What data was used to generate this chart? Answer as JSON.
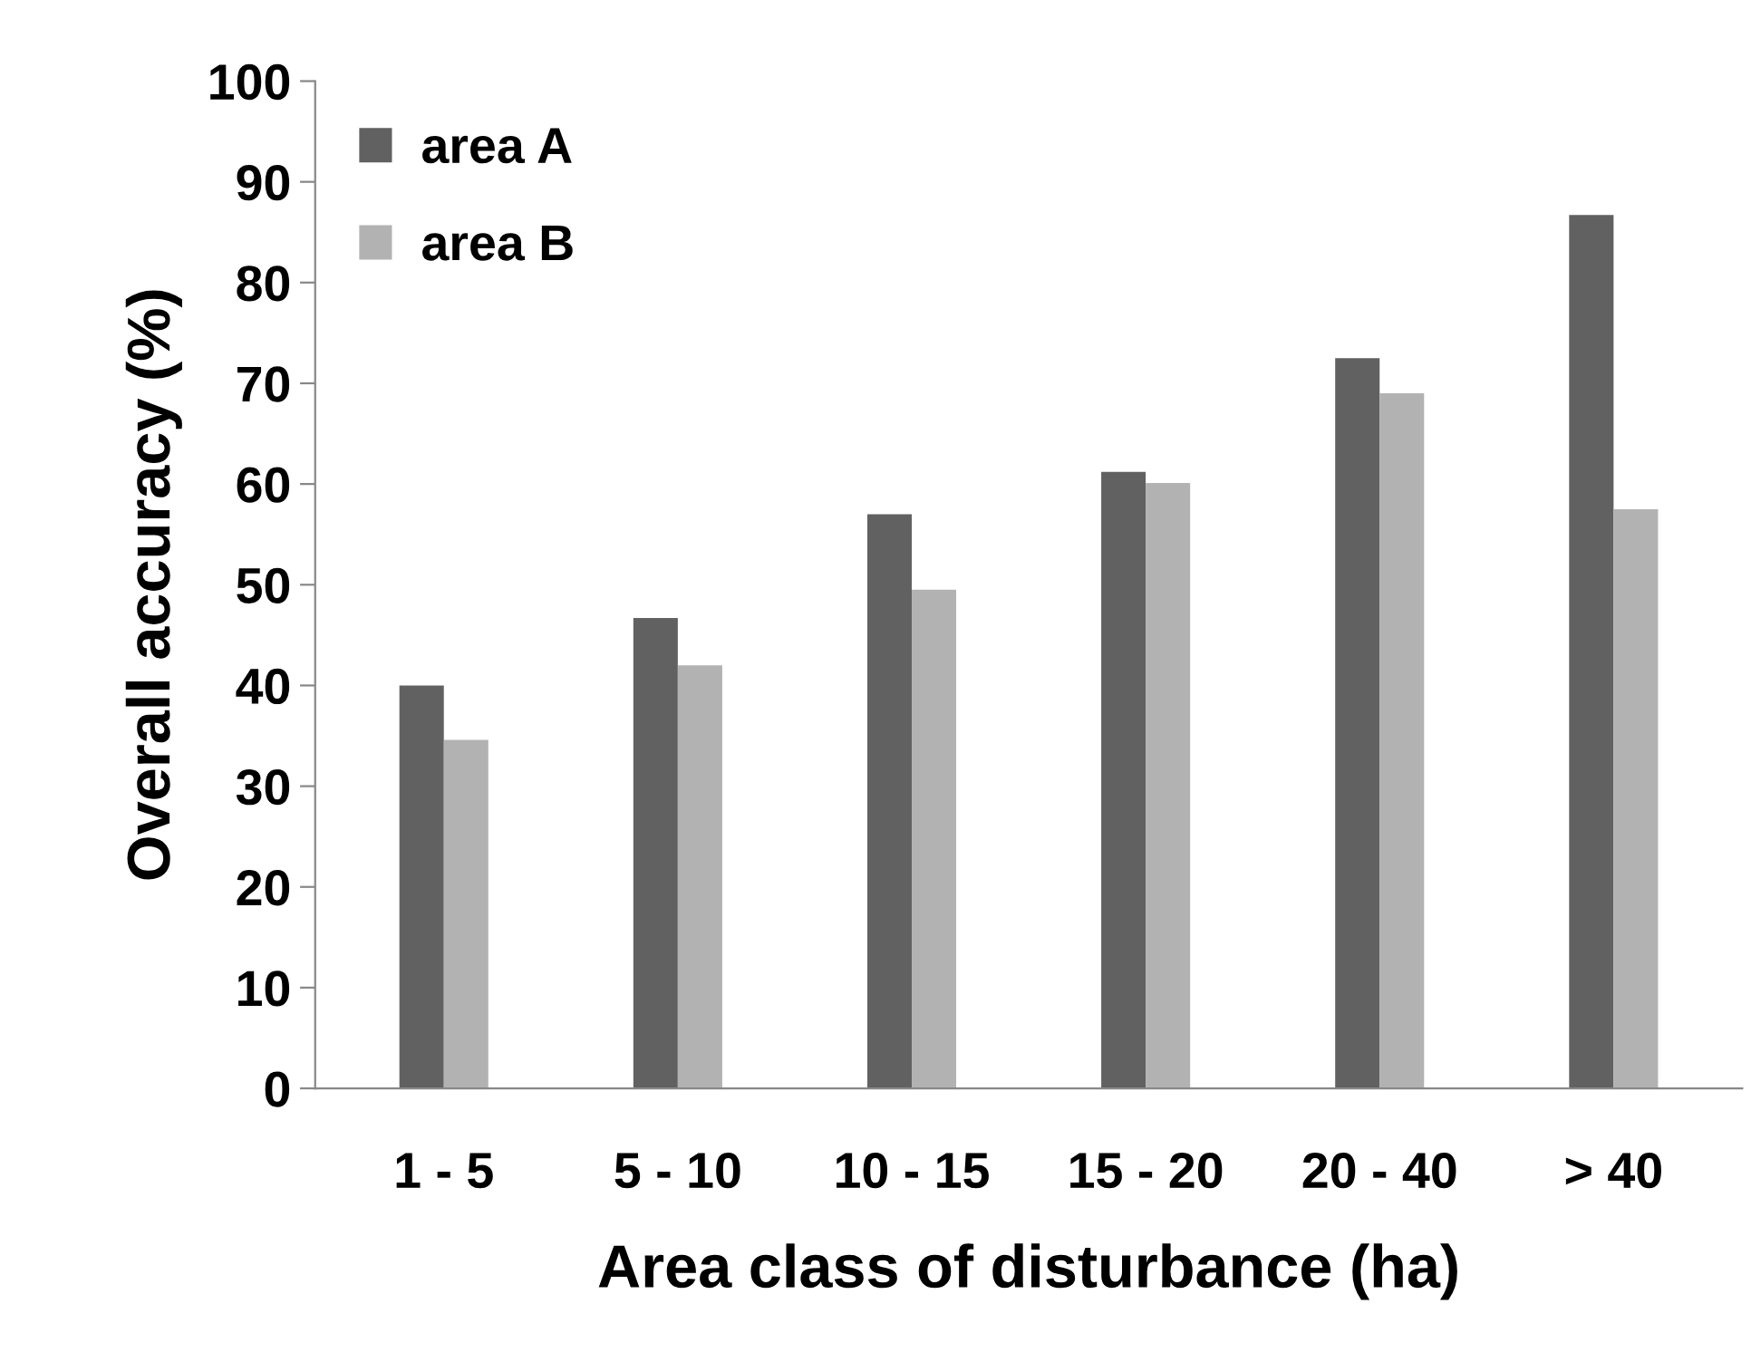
{
  "chart_data": {
    "type": "bar",
    "xlabel": "Area class of disturbance (ha)",
    "ylabel": "Overall accuracy (%)",
    "categories": [
      "1 - 5",
      "5 - 10",
      "10 - 15",
      "15 - 20",
      "20 - 40",
      "> 40"
    ],
    "series": [
      {
        "name": "area A",
        "color": "#616161",
        "values": [
          40,
          46.7,
          57,
          61.2,
          72.5,
          86.7
        ]
      },
      {
        "name": "area B",
        "color": "#b2b2b2",
        "values": [
          34.6,
          42,
          49.5,
          60.1,
          69,
          57.5
        ]
      }
    ],
    "ylim": [
      0,
      100
    ],
    "yticks": [
      0,
      10,
      20,
      30,
      40,
      50,
      60,
      70,
      80,
      90,
      100
    ],
    "grid": false,
    "legend": "top left"
  }
}
